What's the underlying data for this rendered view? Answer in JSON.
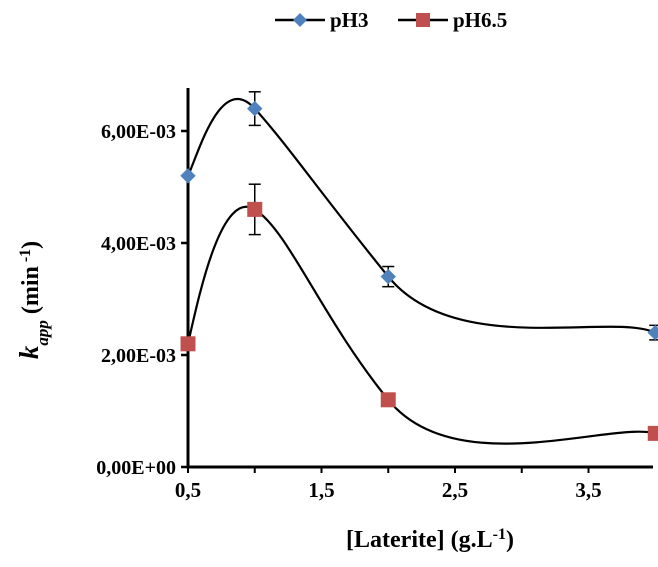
{
  "chart_data": {
    "type": "scatter",
    "xlabel_main": "[Laterite] (g.L",
    "xlabel_sup": "-1",
    "xlabel_end": ")",
    "ylabel_k": "k",
    "ylabel_sub": "app",
    "ylabel_main": " (min",
    "ylabel_sup": " -1",
    "ylabel_end": ")",
    "xlim": [
      0.5,
      4.0
    ],
    "ylim": [
      0,
      0.0068
    ],
    "x_ticks": [
      0.5,
      1.5,
      2.5,
      3.5
    ],
    "x_tick_labels": [
      "0,5",
      "1,5",
      "2,5",
      "3,5"
    ],
    "y_ticks": [
      0,
      0.002,
      0.004,
      0.006
    ],
    "y_tick_labels": [
      "0,00E+00",
      "2,00E-03",
      "4,00E-03",
      "6,00E-03"
    ],
    "grid": false,
    "legend_position": "top",
    "series": [
      {
        "name": "pH3",
        "marker": "diamond",
        "color": "#4f81bd",
        "x": [
          0.5,
          1.0,
          2.0,
          4.0
        ],
        "y": [
          0.0052,
          0.0064,
          0.0034,
          0.0024
        ],
        "error": [
          0.0,
          0.0003,
          0.00018,
          0.00013
        ]
      },
      {
        "name": "pH6.5",
        "marker": "square",
        "color": "#c0504d",
        "x": [
          0.5,
          1.0,
          2.0,
          4.0
        ],
        "y": [
          0.0022,
          0.0046,
          0.0012,
          0.0006
        ],
        "error": [
          0.0,
          0.00045,
          0.0,
          0.0
        ]
      }
    ]
  }
}
